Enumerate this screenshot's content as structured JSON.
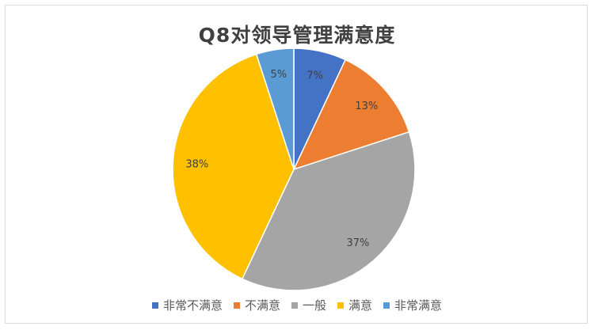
{
  "chart_data": {
    "type": "pie",
    "title": "Q8对领导管理满意度",
    "categories": [
      "非常不满意",
      "不满意",
      "一般",
      "满意",
      "非常满意"
    ],
    "values": [
      7,
      13,
      37,
      38,
      5
    ],
    "labels": [
      "7%",
      "13%",
      "37%",
      "38%",
      "5%"
    ],
    "colors": [
      "#4472C4",
      "#ED7D31",
      "#A5A5A5",
      "#FFC000",
      "#5B9BD5"
    ],
    "start_angle_deg": 0,
    "direction": "clockwise",
    "legend_position": "bottom"
  }
}
